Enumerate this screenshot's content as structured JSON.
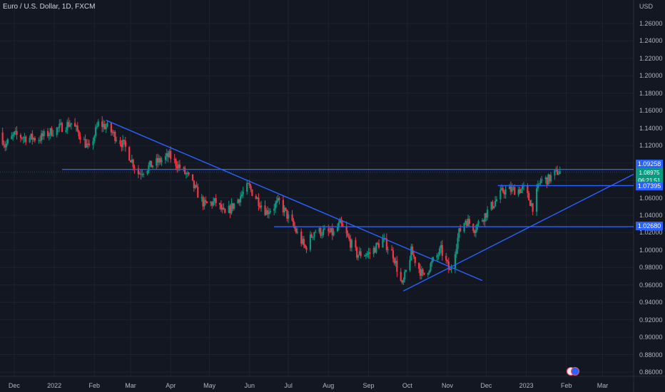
{
  "header": {
    "title": "Euro / U.S. Dollar, 1D, FXCM",
    "currency": "USD"
  },
  "colors": {
    "background": "#131722",
    "up": "#089981",
    "down": "#f23645",
    "drawing": "#2962ff",
    "text": "#b2b5be"
  },
  "badges": {
    "level_top": "1.09258",
    "level_mid": "1.07395",
    "level_low": "1.02680",
    "current_price": "1.08975",
    "countdown": "06:21:51"
  },
  "event_icon": "calendar-flag-icon",
  "chart_data": {
    "type": "candlestick",
    "title": "Euro / U.S. Dollar, 1D, FXCM",
    "y_axis_label": "USD",
    "ylim": [
      0.85,
      1.27
    ],
    "yticks": [
      "1.26000",
      "1.24000",
      "1.22000",
      "1.20000",
      "1.18000",
      "1.16000",
      "1.14000",
      "1.12000",
      "1.10000",
      "1.08000",
      "1.06000",
      "1.04000",
      "1.02000",
      "1.00000",
      "0.98000",
      "0.96000",
      "0.94000",
      "0.92000",
      "0.90000",
      "0.88000",
      "0.86000"
    ],
    "xticks": [
      "Dec",
      "2022",
      "Feb",
      "Mar",
      "Apr",
      "May",
      "Jun",
      "Jul",
      "Aug",
      "Sep",
      "Oct",
      "Nov",
      "Dec",
      "2023",
      "Feb",
      "Mar"
    ],
    "x_range": [
      "2021-11-20",
      "2023-03-25"
    ],
    "close_path": [
      [
        "2021-11-20",
        1.135
      ],
      [
        "2021-11-24",
        1.12
      ],
      [
        "2021-12-01",
        1.132
      ],
      [
        "2021-12-10",
        1.129
      ],
      [
        "2021-12-20",
        1.128
      ],
      [
        "2021-12-31",
        1.137
      ],
      [
        "2022-01-14",
        1.146
      ],
      [
        "2022-01-21",
        1.132
      ],
      [
        "2022-01-28",
        1.115
      ],
      [
        "2022-02-04",
        1.145
      ],
      [
        "2022-02-10",
        1.142
      ],
      [
        "2022-02-24",
        1.12
      ],
      [
        "2022-03-07",
        1.088
      ],
      [
        "2022-03-14",
        1.095
      ],
      [
        "2022-03-31",
        1.108
      ],
      [
        "2022-04-05",
        1.1
      ],
      [
        "2022-04-14",
        1.085
      ],
      [
        "2022-04-27",
        1.052
      ],
      [
        "2022-05-06",
        1.055
      ],
      [
        "2022-05-13",
        1.04
      ],
      [
        "2022-05-31",
        1.073
      ],
      [
        "2022-06-14",
        1.044
      ],
      [
        "2022-06-24",
        1.055
      ],
      [
        "2022-07-05",
        1.027
      ],
      [
        "2022-07-14",
        1.002
      ],
      [
        "2022-07-21",
        1.022
      ],
      [
        "2022-08-05",
        1.019
      ],
      [
        "2022-08-10",
        1.03
      ],
      [
        "2022-08-23",
        0.995
      ],
      [
        "2022-09-02",
        0.996
      ],
      [
        "2022-09-12",
        1.012
      ],
      [
        "2022-09-20",
        0.995
      ],
      [
        "2022-09-27",
        0.958
      ],
      [
        "2022-10-04",
        0.998
      ],
      [
        "2022-10-13",
        0.97
      ],
      [
        "2022-10-27",
        1.0
      ],
      [
        "2022-11-03",
        0.975
      ],
      [
        "2022-11-10",
        1.02
      ],
      [
        "2022-11-15",
        1.035
      ],
      [
        "2022-11-22",
        1.025
      ],
      [
        "2022-12-05",
        1.05
      ],
      [
        "2022-12-14",
        1.068
      ],
      [
        "2022-12-30",
        1.07
      ],
      [
        "2023-01-06",
        1.05
      ],
      [
        "2023-01-12",
        1.08
      ],
      [
        "2023-01-18",
        1.081
      ],
      [
        "2023-01-25",
        1.09
      ],
      [
        "2023-01-27",
        1.0897
      ]
    ],
    "annotations": {
      "horizontal_levels": [
        {
          "value": 1.09258,
          "from": "2022-01-07"
        },
        {
          "value": 1.07395,
          "from": "2022-12-10"
        },
        {
          "value": 1.0268,
          "from": "2022-06-20"
        }
      ],
      "trendlines": [
        {
          "from": [
            "2022-02-10",
            1.149
          ],
          "to": [
            "2022-11-28",
            0.965
          ]
        },
        {
          "from": [
            "2022-09-28",
            0.953
          ],
          "to": [
            "2023-03-25",
            1.087
          ]
        }
      ]
    },
    "grid": true
  }
}
